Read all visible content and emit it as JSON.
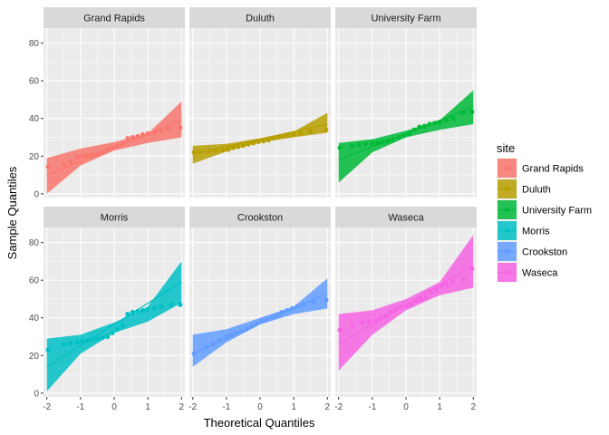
{
  "chart_data": {
    "type": "scatter",
    "subtype": "qq-plot with confidence bands, faceted",
    "xlabel": "Theoretical Quantiles",
    "ylabel": "Sample Quantiles",
    "xlim": [
      -2.1,
      2.1
    ],
    "ylim": [
      -2,
      88
    ],
    "x_ticks": [
      -2,
      -1,
      0,
      1,
      2
    ],
    "y_ticks": [
      0,
      20,
      40,
      60,
      80
    ],
    "grid": true,
    "legend": {
      "title": "site",
      "placement": "right"
    },
    "panels": [
      {
        "name": "Grand Rapids",
        "color": "#F8766D",
        "line": {
          "x": [
            -2,
            2
          ],
          "y": [
            10,
            39
          ]
        },
        "band_upper": [
          [
            -2,
            19
          ],
          [
            -1,
            24
          ],
          [
            0,
            27.5
          ],
          [
            1,
            32
          ],
          [
            2,
            49
          ]
        ],
        "band_lower": [
          [
            -2,
            0
          ],
          [
            -1,
            15
          ],
          [
            0,
            23
          ],
          [
            1,
            27
          ],
          [
            2,
            30
          ]
        ],
        "points": [
          [
            -1.96,
            14.4
          ],
          [
            -1.5,
            15.5
          ],
          [
            -1.3,
            17
          ],
          [
            -1.1,
            19.5
          ],
          [
            -0.95,
            20
          ],
          [
            -0.8,
            20.3
          ],
          [
            -0.65,
            20.8
          ],
          [
            -0.5,
            21
          ],
          [
            -0.35,
            22
          ],
          [
            -0.2,
            23.5
          ],
          [
            -0.05,
            24.5
          ],
          [
            0.1,
            25.5
          ],
          [
            0.25,
            26.5
          ],
          [
            0.4,
            29.5
          ],
          [
            0.55,
            30
          ],
          [
            0.7,
            30.5
          ],
          [
            0.85,
            31.5
          ],
          [
            1.0,
            32
          ],
          [
            1.2,
            32.5
          ],
          [
            1.4,
            33.5
          ],
          [
            1.6,
            34.5
          ],
          [
            1.96,
            35
          ]
        ]
      },
      {
        "name": "Duluth",
        "color": "#B79F00",
        "line": {
          "x": [
            -2,
            2
          ],
          "y": [
            21,
            37
          ]
        },
        "band_upper": [
          [
            -2,
            25.5
          ],
          [
            -1,
            26.5
          ],
          [
            0,
            29.5
          ],
          [
            1,
            33
          ],
          [
            2,
            43
          ]
        ],
        "band_lower": [
          [
            -2,
            16
          ],
          [
            -1,
            22.5
          ],
          [
            0,
            27.5
          ],
          [
            1,
            30
          ],
          [
            2,
            32.5
          ]
        ],
        "points": [
          [
            -1.96,
            22
          ],
          [
            -1.8,
            22.3
          ],
          [
            -1.5,
            22.8
          ],
          [
            -1.3,
            23
          ],
          [
            -1.1,
            23.2
          ],
          [
            -0.95,
            23.5
          ],
          [
            -0.8,
            24.5
          ],
          [
            -0.65,
            25
          ],
          [
            -0.5,
            25.6
          ],
          [
            -0.35,
            26.3
          ],
          [
            -0.2,
            27
          ],
          [
            -0.05,
            27.5
          ],
          [
            0.1,
            28
          ],
          [
            0.25,
            28.5
          ],
          [
            0.4,
            29.5
          ],
          [
            0.55,
            30
          ],
          [
            0.7,
            30.5
          ],
          [
            0.85,
            31
          ],
          [
            1.0,
            31.5
          ],
          [
            1.2,
            32
          ],
          [
            1.5,
            33
          ],
          [
            1.96,
            34
          ]
        ]
      },
      {
        "name": "University Farm",
        "color": "#00BA38",
        "line": {
          "x": [
            -2,
            2
          ],
          "y": [
            18,
            46
          ]
        },
        "band_upper": [
          [
            -2,
            27
          ],
          [
            -1,
            29
          ],
          [
            0,
            33.5
          ],
          [
            1,
            39
          ],
          [
            2,
            55
          ]
        ],
        "band_lower": [
          [
            -2,
            6
          ],
          [
            -1,
            22
          ],
          [
            0,
            30
          ],
          [
            1,
            34
          ],
          [
            2,
            37
          ]
        ],
        "points": [
          [
            -1.96,
            24.5
          ],
          [
            -1.6,
            25.5
          ],
          [
            -1.4,
            26
          ],
          [
            -1.2,
            26.5
          ],
          [
            -1.0,
            26.8
          ],
          [
            -0.85,
            27
          ],
          [
            -0.7,
            27.5
          ],
          [
            -0.55,
            28
          ],
          [
            -0.4,
            28.5
          ],
          [
            -0.2,
            30
          ],
          [
            -0.05,
            31
          ],
          [
            0.1,
            32
          ],
          [
            0.25,
            34
          ],
          [
            0.4,
            35.5
          ],
          [
            0.55,
            36
          ],
          [
            0.7,
            37
          ],
          [
            0.85,
            37.5
          ],
          [
            1.0,
            38
          ],
          [
            1.2,
            39
          ],
          [
            1.4,
            40
          ],
          [
            1.7,
            43
          ],
          [
            1.96,
            43.5
          ]
        ]
      },
      {
        "name": "Morris",
        "color": "#00BFC4",
        "line": {
          "x": [
            -2,
            2
          ],
          "y": [
            14,
            59
          ]
        },
        "band_upper": [
          [
            -2,
            29
          ],
          [
            -1,
            31
          ],
          [
            0,
            37.5
          ],
          [
            1,
            46
          ],
          [
            2,
            70
          ]
        ],
        "band_lower": [
          [
            -2,
            1
          ],
          [
            -1,
            21
          ],
          [
            0,
            32
          ],
          [
            1,
            38
          ],
          [
            2,
            48
          ]
        ],
        "points": [
          [
            -1.96,
            23
          ],
          [
            -1.5,
            26
          ],
          [
            -1.3,
            26.5
          ],
          [
            -1.1,
            27
          ],
          [
            -0.95,
            27.5
          ],
          [
            -0.8,
            28
          ],
          [
            -0.65,
            28.5
          ],
          [
            -0.5,
            29
          ],
          [
            -0.35,
            29.5
          ],
          [
            -0.2,
            30
          ],
          [
            -0.05,
            32
          ],
          [
            0.1,
            34
          ],
          [
            0.25,
            36
          ],
          [
            0.4,
            42
          ],
          [
            0.55,
            43
          ],
          [
            0.7,
            43.5
          ],
          [
            0.85,
            44
          ],
          [
            1.0,
            44.5
          ],
          [
            1.2,
            45
          ],
          [
            1.4,
            46
          ],
          [
            1.7,
            47
          ],
          [
            1.96,
            47
          ]
        ]
      },
      {
        "name": "Crookston",
        "color": "#619CFF",
        "line": {
          "x": [
            -2,
            2
          ],
          "y": [
            21,
            53
          ]
        },
        "band_upper": [
          [
            -2,
            31
          ],
          [
            -1,
            34
          ],
          [
            0,
            40
          ],
          [
            1,
            46
          ],
          [
            2,
            61
          ]
        ],
        "band_lower": [
          [
            -2,
            14
          ],
          [
            -1,
            27
          ],
          [
            0,
            36.5
          ],
          [
            1,
            42
          ],
          [
            2,
            45
          ]
        ],
        "points": [
          [
            -1.96,
            21
          ],
          [
            -1.6,
            24.5
          ],
          [
            -1.4,
            26
          ],
          [
            -1.2,
            28
          ],
          [
            -1.0,
            30
          ],
          [
            -0.85,
            31
          ],
          [
            -0.7,
            32
          ],
          [
            -0.55,
            33
          ],
          [
            -0.4,
            34
          ],
          [
            -0.25,
            35.5
          ],
          [
            -0.1,
            37
          ],
          [
            0.05,
            38.5
          ],
          [
            0.2,
            39.5
          ],
          [
            0.35,
            40.5
          ],
          [
            0.5,
            41.5
          ],
          [
            0.65,
            43
          ],
          [
            0.8,
            44
          ],
          [
            0.95,
            45
          ],
          [
            1.1,
            46
          ],
          [
            1.3,
            47
          ],
          [
            1.6,
            48.5
          ],
          [
            1.96,
            49.5
          ]
        ]
      },
      {
        "name": "Waseca",
        "color": "#F564E3",
        "line": {
          "x": [
            -2,
            2
          ],
          "y": [
            26,
            68
          ]
        },
        "band_upper": [
          [
            -2,
            42
          ],
          [
            -1,
            44
          ],
          [
            0,
            50
          ],
          [
            1,
            59
          ],
          [
            2,
            84
          ]
        ],
        "band_lower": [
          [
            -2,
            12
          ],
          [
            -1,
            31
          ],
          [
            0,
            44
          ],
          [
            1,
            52
          ],
          [
            2,
            56
          ]
        ],
        "points": [
          [
            -1.96,
            33.5
          ],
          [
            -1.6,
            36
          ],
          [
            -1.3,
            37.5
          ],
          [
            -1.1,
            38
          ],
          [
            -0.9,
            38.5
          ],
          [
            -0.75,
            40
          ],
          [
            -0.6,
            41
          ],
          [
            -0.45,
            43
          ],
          [
            -0.3,
            44.5
          ],
          [
            -0.15,
            46
          ],
          [
            0.0,
            46.5
          ],
          [
            0.15,
            47
          ],
          [
            0.3,
            49
          ],
          [
            0.45,
            50
          ],
          [
            0.6,
            51
          ],
          [
            0.75,
            53.5
          ],
          [
            0.9,
            55
          ],
          [
            1.05,
            57
          ],
          [
            1.2,
            58
          ],
          [
            1.4,
            59.5
          ],
          [
            1.7,
            60.5
          ],
          [
            1.96,
            66
          ]
        ]
      }
    ]
  }
}
